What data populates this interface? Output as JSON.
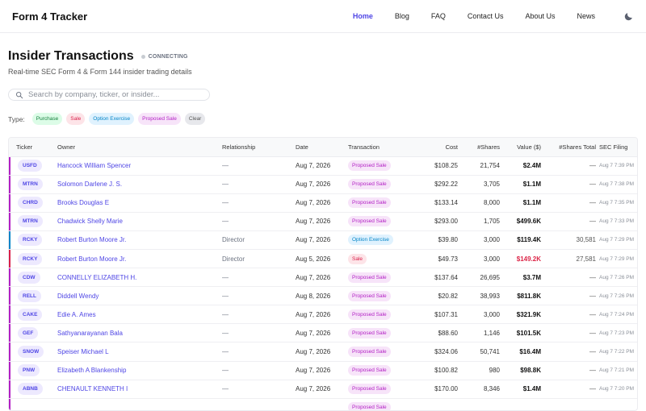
{
  "header": {
    "brand": "Form 4 Tracker",
    "nav": [
      "Home",
      "Blog",
      "FAQ",
      "Contact Us",
      "About Us",
      "News"
    ],
    "active_nav": "Home",
    "theme_icon": "moon-icon"
  },
  "page": {
    "title": "Insider Transactions",
    "status": "CONNECTING",
    "subtitle": "Real-time SEC Form 4 & Form 144 insider trading details"
  },
  "search": {
    "placeholder": "Search by company, ticker, or insider...",
    "value": ""
  },
  "filters": {
    "label": "Type:",
    "chips": [
      "Purchase",
      "Sale",
      "Option Exercise",
      "Proposed Sale",
      "Clear"
    ]
  },
  "colors": {
    "accent": "#4f46e5",
    "proposed": "#b21fc4",
    "option": "#0284c7",
    "sale": "#d9204a",
    "purchase": "#15803d"
  },
  "table": {
    "columns": [
      "Ticker",
      "Owner",
      "Relationship",
      "Date",
      "Transaction",
      "Cost",
      "#Shares",
      "Value ($)",
      "#Shares Total",
      "SEC Filing"
    ],
    "rows": [
      {
        "ticker": "USFD",
        "owner": "Hancock William Spencer",
        "relationship": "—",
        "date": "Aug 7, 2026",
        "transaction": "Proposed Sale",
        "cost": "$108.25",
        "shares": "21,754",
        "value": "$2.4M",
        "total": "—",
        "filing": "Aug 7 7:39 PM"
      },
      {
        "ticker": "MTRN",
        "owner": "Solomon Darlene J. S.",
        "relationship": "—",
        "date": "Aug 7, 2026",
        "transaction": "Proposed Sale",
        "cost": "$292.22",
        "shares": "3,705",
        "value": "$1.1M",
        "total": "—",
        "filing": "Aug 7 7:38 PM"
      },
      {
        "ticker": "CHRD",
        "owner": "Brooks Douglas E",
        "relationship": "—",
        "date": "Aug 7, 2026",
        "transaction": "Proposed Sale",
        "cost": "$133.14",
        "shares": "8,000",
        "value": "$1.1M",
        "total": "—",
        "filing": "Aug 7 7:35 PM"
      },
      {
        "ticker": "MTRN",
        "owner": "Chadwick Shelly Marie",
        "relationship": "—",
        "date": "Aug 7, 2026",
        "transaction": "Proposed Sale",
        "cost": "$293.00",
        "shares": "1,705",
        "value": "$499.6K",
        "total": "—",
        "filing": "Aug 7 7:33 PM"
      },
      {
        "ticker": "RCKY",
        "owner": "Robert Burton Moore Jr.",
        "relationship": "Director",
        "date": "Aug 7, 2026",
        "transaction": "Option Exercise",
        "cost": "$39.80",
        "shares": "3,000",
        "value": "$119.4K",
        "total": "30,581",
        "filing": "Aug 7 7:29 PM"
      },
      {
        "ticker": "RCKY",
        "owner": "Robert Burton Moore Jr.",
        "relationship": "Director",
        "date": "Aug 5, 2026",
        "transaction": "Sale",
        "cost": "$49.73",
        "shares": "3,000",
        "value": "$149.2K",
        "total": "27,581",
        "filing": "Aug 7 7:29 PM"
      },
      {
        "ticker": "CDW",
        "owner": "CONNELLY ELIZABETH H.",
        "relationship": "—",
        "date": "Aug 7, 2026",
        "transaction": "Proposed Sale",
        "cost": "$137.64",
        "shares": "26,695",
        "value": "$3.7M",
        "total": "—",
        "filing": "Aug 7 7:26 PM"
      },
      {
        "ticker": "RELL",
        "owner": "Diddell Wendy",
        "relationship": "—",
        "date": "Aug 8, 2026",
        "transaction": "Proposed Sale",
        "cost": "$20.82",
        "shares": "38,993",
        "value": "$811.8K",
        "total": "—",
        "filing": "Aug 7 7:26 PM"
      },
      {
        "ticker": "CAKE",
        "owner": "Edie A. Ames",
        "relationship": "—",
        "date": "Aug 7, 2026",
        "transaction": "Proposed Sale",
        "cost": "$107.31",
        "shares": "3,000",
        "value": "$321.9K",
        "total": "—",
        "filing": "Aug 7 7:24 PM"
      },
      {
        "ticker": "GEF",
        "owner": "Sathyanarayanan Bala",
        "relationship": "—",
        "date": "Aug 7, 2026",
        "transaction": "Proposed Sale",
        "cost": "$88.60",
        "shares": "1,146",
        "value": "$101.5K",
        "total": "—",
        "filing": "Aug 7 7:23 PM"
      },
      {
        "ticker": "SNOW",
        "owner": "Speiser Michael L",
        "relationship": "—",
        "date": "Aug 7, 2026",
        "transaction": "Proposed Sale",
        "cost": "$324.06",
        "shares": "50,741",
        "value": "$16.4M",
        "total": "—",
        "filing": "Aug 7 7:22 PM"
      },
      {
        "ticker": "PNW",
        "owner": "Elizabeth A Blankenship",
        "relationship": "—",
        "date": "Aug 7, 2026",
        "transaction": "Proposed Sale",
        "cost": "$100.82",
        "shares": "980",
        "value": "$98.8K",
        "total": "—",
        "filing": "Aug 7 7:21 PM"
      },
      {
        "ticker": "ABNB",
        "owner": "CHENAULT KENNETH I",
        "relationship": "—",
        "date": "Aug 7, 2026",
        "transaction": "Proposed Sale",
        "cost": "$170.00",
        "shares": "8,346",
        "value": "$1.4M",
        "total": "—",
        "filing": "Aug 7 7:20 PM"
      },
      {
        "ticker": "",
        "owner": "",
        "relationship": "",
        "date": "",
        "transaction": "Proposed Sale",
        "cost": "",
        "shares": "",
        "value": "",
        "total": "",
        "filing": ""
      }
    ]
  }
}
